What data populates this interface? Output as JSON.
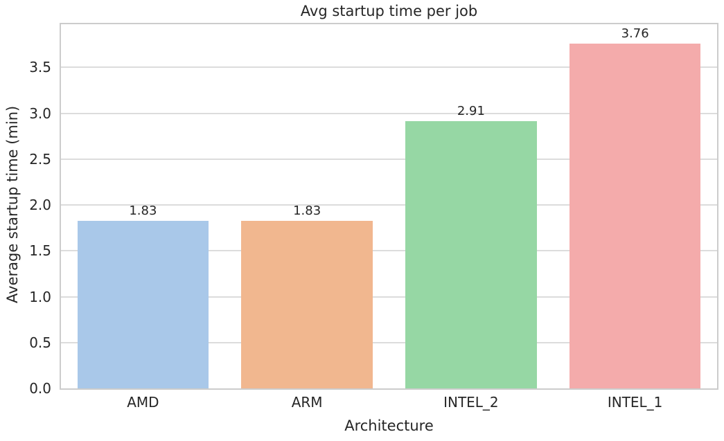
{
  "chart_data": {
    "type": "bar",
    "title": "Avg startup time per job",
    "xlabel": "Architecture",
    "ylabel": "Average startup time (min)",
    "categories": [
      "AMD",
      "ARM",
      "INTEL_2",
      "INTEL_1"
    ],
    "values": [
      1.83,
      1.83,
      2.91,
      3.76
    ],
    "bar_value_labels": [
      "1.83",
      "1.83",
      "2.91",
      "3.76"
    ],
    "bar_colors": [
      "#a9c8e9",
      "#f1b78f",
      "#96d7a4",
      "#f4abab"
    ],
    "ylim": [
      0,
      3.97
    ],
    "yticks": [
      0.0,
      0.5,
      1.0,
      1.5,
      2.0,
      2.5,
      3.0,
      3.5
    ],
    "ytick_labels": [
      "0.0",
      "0.5",
      "1.0",
      "1.5",
      "2.0",
      "2.5",
      "3.0",
      "3.5"
    ],
    "grid": "horizontal",
    "legend": "none",
    "bar_width_fraction": 0.8,
    "background_color": "#ffffff",
    "grid_color": "#dcdcdc",
    "spine_color": "#cccccc",
    "text_color": "#262626"
  }
}
